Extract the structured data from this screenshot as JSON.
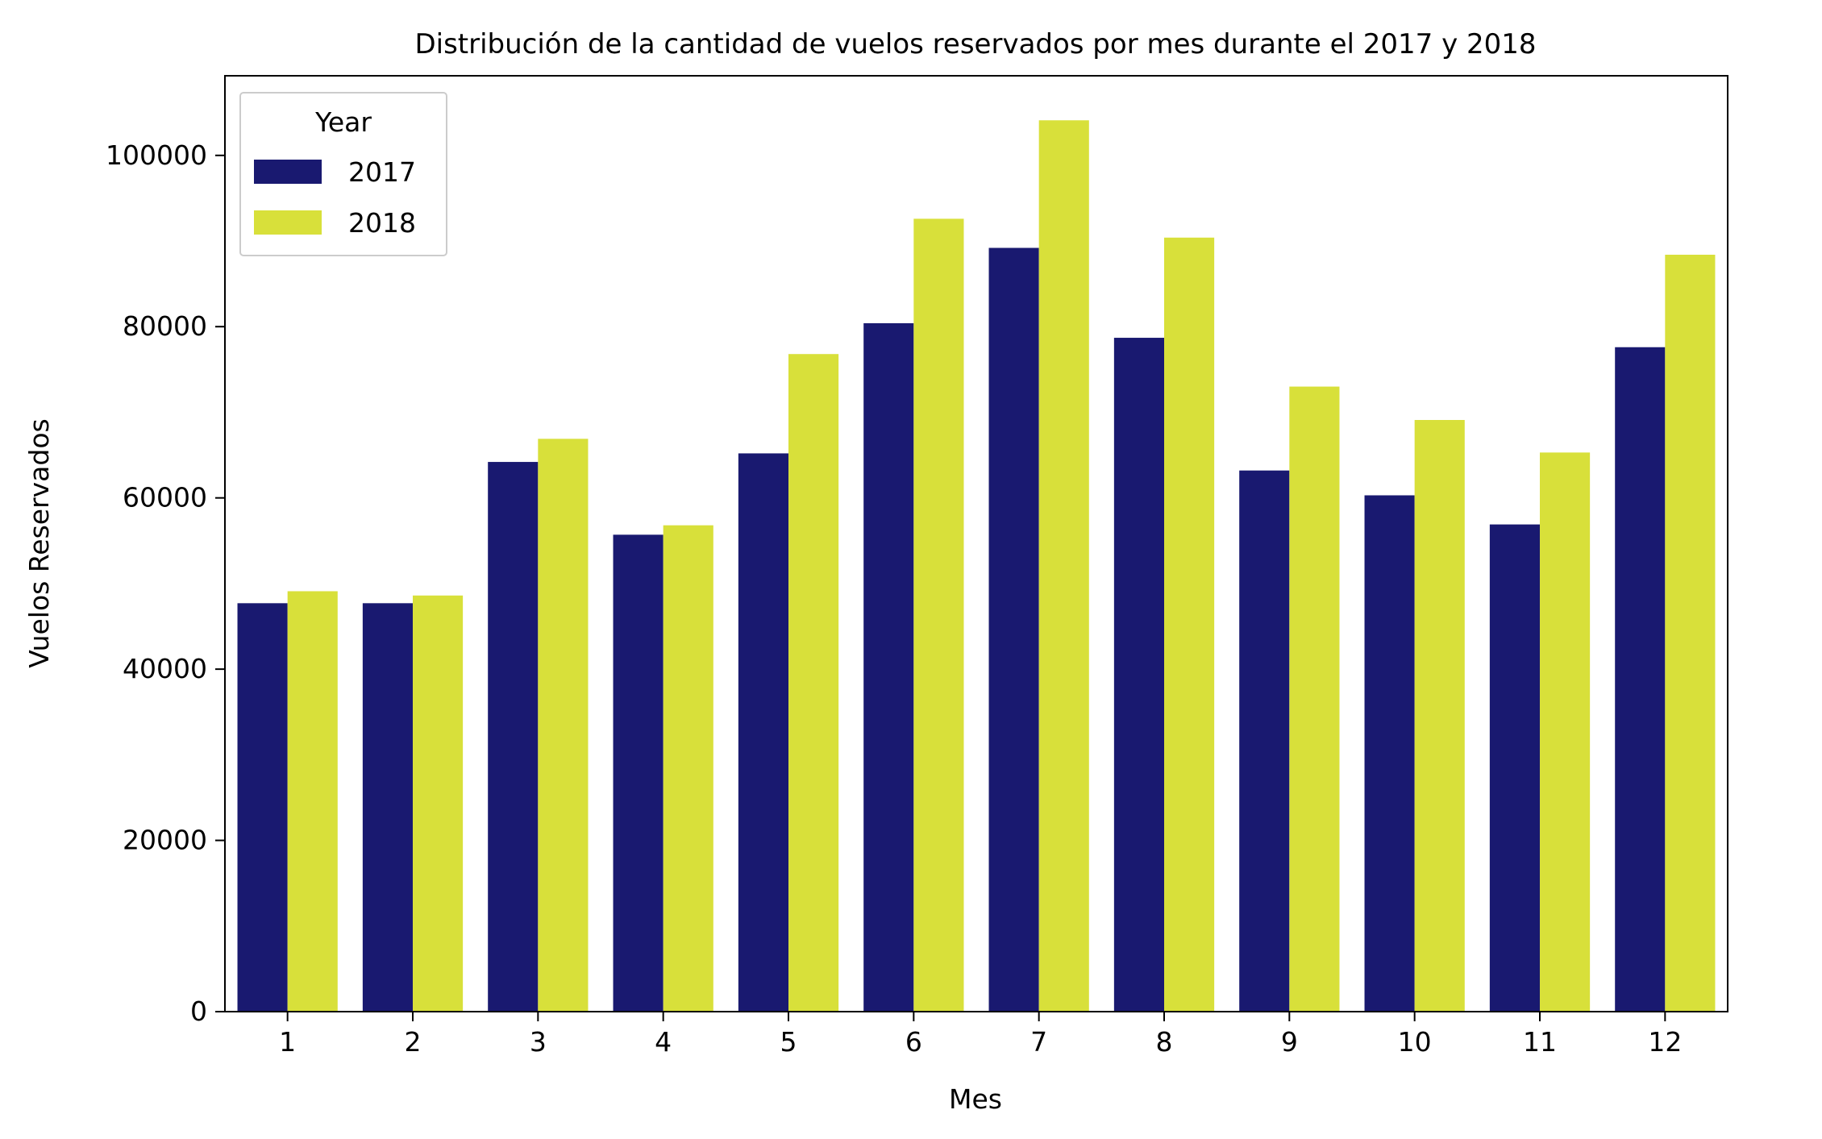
{
  "chart_data": {
    "type": "bar",
    "title": "Distribución de la cantidad de vuelos reservados por mes durante el 2017 y 2018",
    "xlabel": "Mes",
    "ylabel": "Vuelos Reservados",
    "categories": [
      "1",
      "2",
      "3",
      "4",
      "5",
      "6",
      "7",
      "8",
      "9",
      "10",
      "11",
      "12"
    ],
    "series": [
      {
        "name": "2017",
        "color": "#191970",
        "values": [
          47700,
          47700,
          64200,
          55700,
          65200,
          80400,
          89200,
          78700,
          63200,
          60300,
          56900,
          77600
        ]
      },
      {
        "name": "2018",
        "color": "#d8e03a",
        "values": [
          49100,
          48600,
          66900,
          56800,
          76800,
          92600,
          104100,
          90400,
          73000,
          69100,
          65300,
          88400
        ]
      }
    ],
    "ylim": [
      0,
      109300
    ],
    "yticks": [
      0,
      20000,
      40000,
      60000,
      80000,
      100000
    ],
    "grid": false,
    "legend": {
      "title": "Year",
      "position": "top-left"
    }
  }
}
